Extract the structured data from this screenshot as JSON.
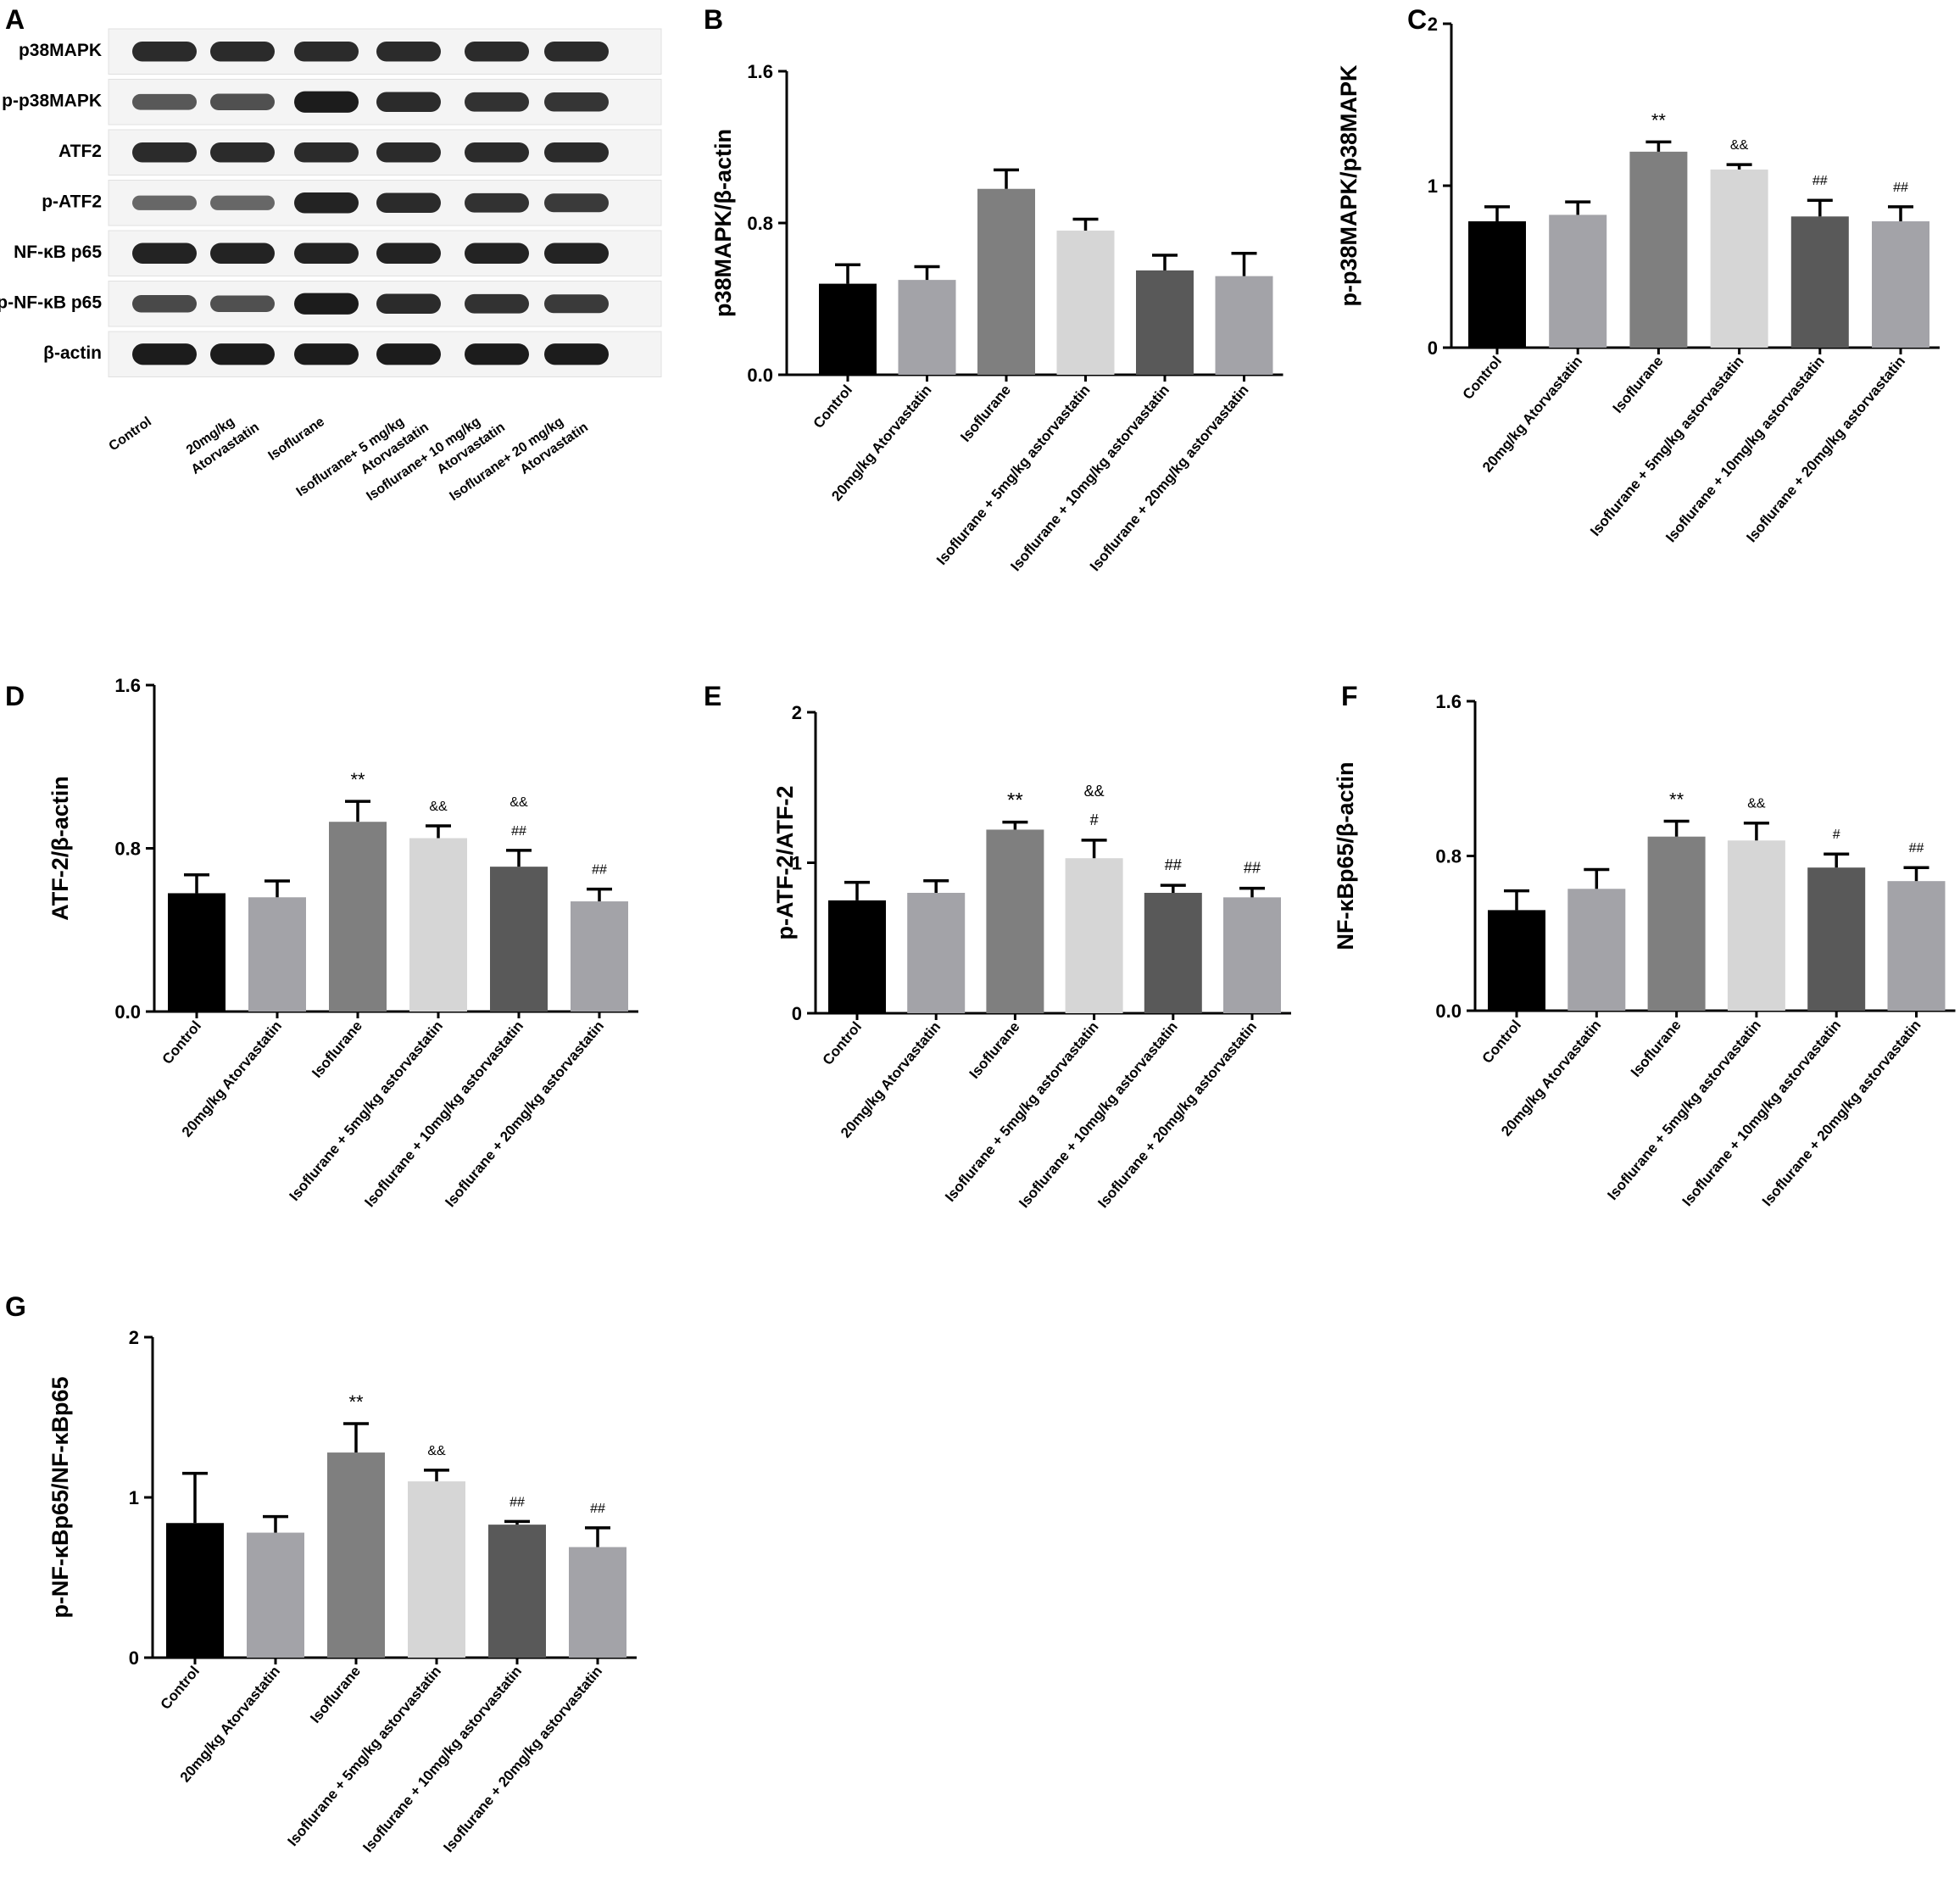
{
  "western_blot": {
    "panel_label": "A",
    "rows": [
      {
        "label": "p38MAPK",
        "intensity": [
          0.85,
          0.85,
          0.85,
          0.85,
          0.85,
          0.85
        ]
      },
      {
        "label": "p-p38MAPK",
        "intensity": [
          0.55,
          0.6,
          0.95,
          0.85,
          0.8,
          0.78
        ]
      },
      {
        "label": "ATF2",
        "intensity": [
          0.85,
          0.85,
          0.85,
          0.85,
          0.85,
          0.85
        ]
      },
      {
        "label": "p-ATF2",
        "intensity": [
          0.45,
          0.45,
          0.9,
          0.85,
          0.8,
          0.75
        ]
      },
      {
        "label": "NF-κB p65",
        "intensity": [
          0.9,
          0.9,
          0.9,
          0.9,
          0.9,
          0.9
        ]
      },
      {
        "label": "p-NF-κB p65",
        "intensity": [
          0.65,
          0.6,
          0.95,
          0.85,
          0.8,
          0.75
        ]
      },
      {
        "label": "β-actin",
        "intensity": [
          0.95,
          0.95,
          0.95,
          0.95,
          0.95,
          0.95
        ]
      }
    ],
    "lanes": [
      [
        "Control"
      ],
      [
        "20mg/kg",
        "Atorvastatin"
      ],
      [
        "Isoflurane"
      ],
      [
        "Isoflurane+ 5 mg/kg",
        "Atorvastatin"
      ],
      [
        "Isoflurane+ 10 mg/kg",
        "Atorvastatin"
      ],
      [
        "Isoflurane+ 20 mg/kg",
        "Atorvastatin"
      ]
    ]
  },
  "colors": [
    "#000000",
    "#a3a3a8",
    "#7f7f7f",
    "#d6d6d6",
    "#595959",
    "#a3a3a8"
  ],
  "chart_data": [
    {
      "panel": "B",
      "type": "bar",
      "ylabel": "p38MAPK/β-actin",
      "categories": [
        "Control",
        "20mg/kg Atorvastatin",
        "Isoflurane",
        "Isoflurane + 5mg/kg astorvastatin",
        "Isoflurane + 10mg/kg astorvastatin",
        "Isoflurane + 20mg/kg astorvastatin"
      ],
      "values": [
        0.48,
        0.5,
        0.98,
        0.76,
        0.55,
        0.52
      ],
      "errors": [
        0.1,
        0.07,
        0.1,
        0.06,
        0.08,
        0.12
      ],
      "annotations": [
        [],
        [],
        [],
        [],
        [],
        []
      ],
      "ylim": [
        0,
        1.6
      ],
      "yticks": [
        "0.0",
        "0.8",
        "1.6"
      ]
    },
    {
      "panel": "C",
      "type": "bar",
      "ylabel": "p-p38MAPK/p38MAPK",
      "categories": [
        "Control",
        "20mg/kg Atorvastatin",
        "Isoflurane",
        "Isoflurane + 5mg/kg astorvastatin",
        "Isoflurane + 10mg/kg astorvastatin",
        "Isoflurane + 20mg/kg astorvastatin"
      ],
      "values": [
        0.78,
        0.82,
        1.21,
        1.1,
        0.81,
        0.78
      ],
      "errors": [
        0.09,
        0.08,
        0.06,
        0.03,
        0.1,
        0.09
      ],
      "annotations": [
        [],
        [],
        [
          "**"
        ],
        [
          "&&"
        ],
        [
          "##"
        ],
        [
          "##"
        ]
      ],
      "ylim": [
        0,
        2
      ],
      "yticks": [
        "0",
        "1",
        "2"
      ]
    },
    {
      "panel": "D",
      "type": "bar",
      "ylabel": "ATF-2/β-actin",
      "categories": [
        "Control",
        "20mg/kg Atorvastatin",
        "Isoflurane",
        "Isoflurane + 5mg/kg astorvastatin",
        "Isoflurane + 10mg/kg astorvastatin",
        "Isoflurane + 20mg/kg astorvastatin"
      ],
      "values": [
        0.58,
        0.56,
        0.93,
        0.85,
        0.71,
        0.54
      ],
      "errors": [
        0.09,
        0.08,
        0.1,
        0.06,
        0.08,
        0.06
      ],
      "annotations": [
        [],
        [],
        [
          "**"
        ],
        [
          "&&"
        ],
        [
          "##",
          "&&"
        ],
        [
          "##"
        ]
      ],
      "ylim": [
        0,
        1.6
      ],
      "yticks": [
        "0.0",
        "0.8",
        "1.6"
      ]
    },
    {
      "panel": "E",
      "type": "bar",
      "ylabel": "p-ATF-2/ATF-2",
      "categories": [
        "Control",
        "20mg/kg Atorvastatin",
        "Isoflurane",
        "Isoflurane + 5mg/kg astorvastatin",
        "Isoflurane + 10mg/kg astorvastatin",
        "Isoflurane + 20mg/kg astorvastatin"
      ],
      "values": [
        0.75,
        0.8,
        1.22,
        1.03,
        0.8,
        0.77
      ],
      "errors": [
        0.12,
        0.08,
        0.05,
        0.12,
        0.05,
        0.06
      ],
      "annotations": [
        [],
        [],
        [
          "**"
        ],
        [
          "#",
          "&&"
        ],
        [
          "##"
        ],
        [
          "##"
        ]
      ],
      "ylim": [
        0,
        2
      ],
      "yticks": [
        "0",
        "1",
        "2"
      ]
    },
    {
      "panel": "F",
      "type": "bar",
      "ylabel": "NF-κBp65/β-actin",
      "categories": [
        "Control",
        "20mg/kg Atorvastatin",
        "Isoflurane",
        "Isoflurane + 5mg/kg astorvastatin",
        "Isoflurane + 10mg/kg astorvastatin",
        "Isoflurane + 20mg/kg astorvastatin"
      ],
      "values": [
        0.52,
        0.63,
        0.9,
        0.88,
        0.74,
        0.67
      ],
      "errors": [
        0.1,
        0.1,
        0.08,
        0.09,
        0.07,
        0.07
      ],
      "annotations": [
        [],
        [],
        [
          "**"
        ],
        [
          "&&"
        ],
        [
          "#"
        ],
        [
          "##"
        ]
      ],
      "ylim": [
        0,
        1.6
      ],
      "yticks": [
        "0.0",
        "0.8",
        "1.6"
      ]
    },
    {
      "panel": "G",
      "type": "bar",
      "ylabel": "p-NF-κBp65/NF-κBp65",
      "categories": [
        "Control",
        "20mg/kg Atorvastatin",
        "Isoflurane",
        "Isoflurane + 5mg/kg astorvastatin",
        "Isoflurane + 10mg/kg astorvastatin",
        "Isoflurane + 20mg/kg astorvastatin"
      ],
      "values": [
        0.84,
        0.78,
        1.28,
        1.1,
        0.83,
        0.69
      ],
      "errors": [
        0.31,
        0.1,
        0.18,
        0.07,
        0.02,
        0.12
      ],
      "annotations": [
        [],
        [],
        [
          "**"
        ],
        [
          "&&"
        ],
        [
          "##"
        ],
        [
          "##"
        ]
      ],
      "ylim": [
        0,
        2
      ],
      "yticks": [
        "0",
        "1",
        "2"
      ]
    }
  ]
}
